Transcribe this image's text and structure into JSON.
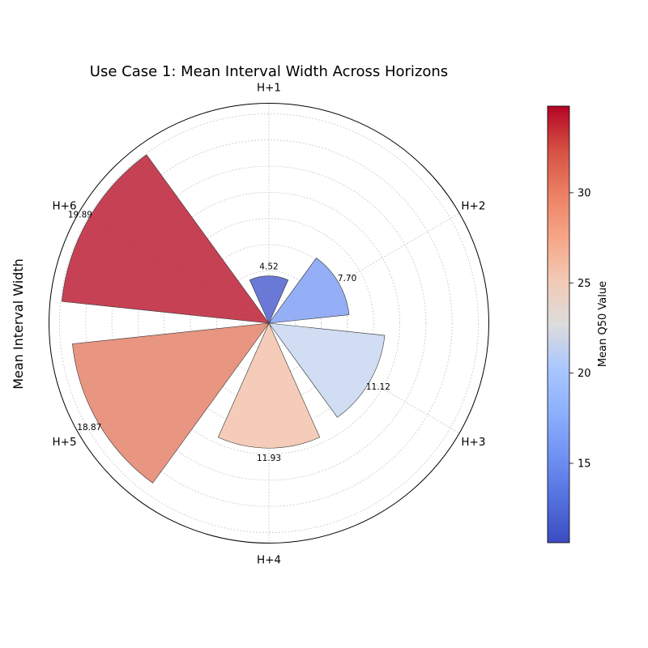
{
  "chart_data": {
    "type": "polar-bar",
    "title": "Use Case 1: Mean Interval Width Across Horizons",
    "ylabel": "Mean Interval Width",
    "categories": [
      "H+1",
      "H+2",
      "H+3",
      "H+4",
      "H+5",
      "H+6"
    ],
    "values": [
      4.52,
      7.7,
      11.12,
      11.93,
      18.87,
      19.89
    ],
    "value_labels": [
      "4.52",
      "7.70",
      "11.12",
      "11.93",
      "18.87",
      "19.89"
    ],
    "color_values": [
      10.9,
      15.7,
      21.1,
      26.4,
      30.5,
      34.8
    ],
    "bar_colors": [
      "#5a6ad2",
      "#8aa6f5",
      "#cbd9f1",
      "#f4c6b1",
      "#e68a73",
      "#c12c42"
    ],
    "rlim": [
      0,
      21
    ],
    "grid": true,
    "colorbar": {
      "label": "Mean Q50 Value",
      "range": [
        10.6,
        34.8
      ],
      "ticks": [
        15,
        20,
        25,
        30
      ],
      "tick_labels": [
        "15",
        "20",
        "25",
        "30"
      ],
      "colormap": "coolwarm"
    }
  }
}
